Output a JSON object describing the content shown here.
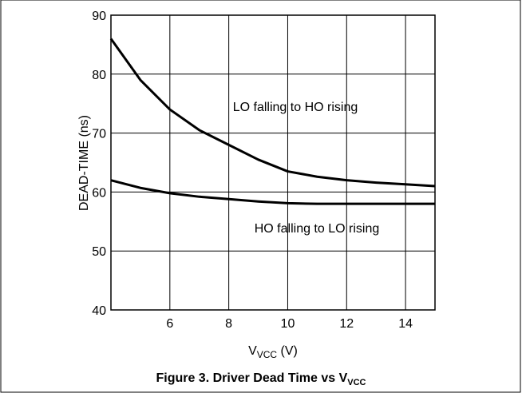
{
  "chart_data": {
    "type": "line",
    "caption": {
      "main": "Figure 3. Driver Dead Time vs V",
      "sub": "VCC"
    },
    "x_label": {
      "main": "V",
      "sub": "VCC",
      "unit": " (V)"
    },
    "y_label": "DEAD-TIME (ns)",
    "x": [
      4,
      5,
      6,
      7,
      8,
      9,
      10,
      11,
      12,
      13,
      14,
      15
    ],
    "series": [
      {
        "name": "LO falling to HO rising",
        "color": "#000000",
        "values": [
          86,
          79,
          74,
          70.5,
          68,
          65.5,
          63.5,
          62.6,
          62,
          61.6,
          61.3,
          61
        ]
      },
      {
        "name": "HO falling to LO rising",
        "color": "#000000",
        "values": [
          62,
          60.7,
          59.8,
          59.2,
          58.8,
          58.4,
          58.1,
          58,
          58,
          58,
          58,
          58
        ]
      }
    ],
    "xlim": [
      4,
      15
    ],
    "xticks": [
      6,
      8,
      10,
      12,
      14
    ],
    "ylim": [
      40,
      90
    ],
    "yticks": [
      40,
      50,
      60,
      70,
      80,
      90
    ],
    "grid": true
  }
}
